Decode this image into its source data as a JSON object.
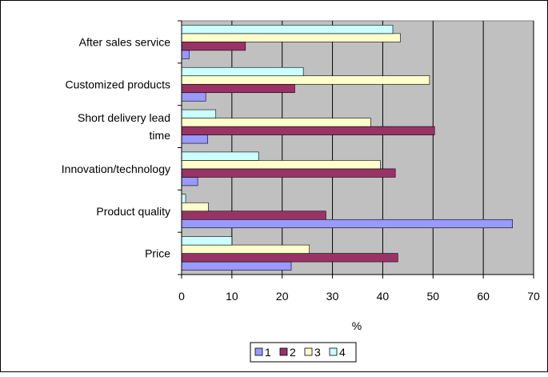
{
  "chart_data": {
    "type": "bar",
    "orientation": "horizontal",
    "categories": [
      "After sales service",
      "Customized products",
      "Short delivery lead time",
      "Innovation/technology",
      "Product quality",
      "Price"
    ],
    "category_label_lines": [
      [
        "After sales service"
      ],
      [
        "Customized products"
      ],
      [
        "Short delivery lead",
        "time"
      ],
      [
        "Innovation/technology"
      ],
      [
        "Product quality"
      ],
      [
        "Price"
      ]
    ],
    "series": [
      {
        "name": "1",
        "color": "#9999ff",
        "values": [
          1.5,
          4.8,
          5.2,
          3.2,
          65.8,
          21.8
        ]
      },
      {
        "name": "2",
        "color": "#993366",
        "values": [
          12.7,
          22.5,
          50.3,
          42.5,
          28.7,
          43.0
        ]
      },
      {
        "name": "3",
        "color": "#ffffcc",
        "values": [
          43.5,
          49.3,
          37.6,
          39.5,
          5.3,
          25.4
        ]
      },
      {
        "name": "4",
        "color": "#ccffff",
        "values": [
          42.0,
          24.2,
          6.8,
          15.3,
          0.8,
          10.0
        ]
      }
    ],
    "xlabel": "%",
    "ylabel": "",
    "title": "",
    "xlim": [
      0,
      70
    ],
    "xticks": [
      0,
      10,
      20,
      30,
      40,
      50,
      60,
      70
    ],
    "grid": "vertical",
    "plot_background": "#c0c0c0",
    "legend_position": "bottom"
  }
}
